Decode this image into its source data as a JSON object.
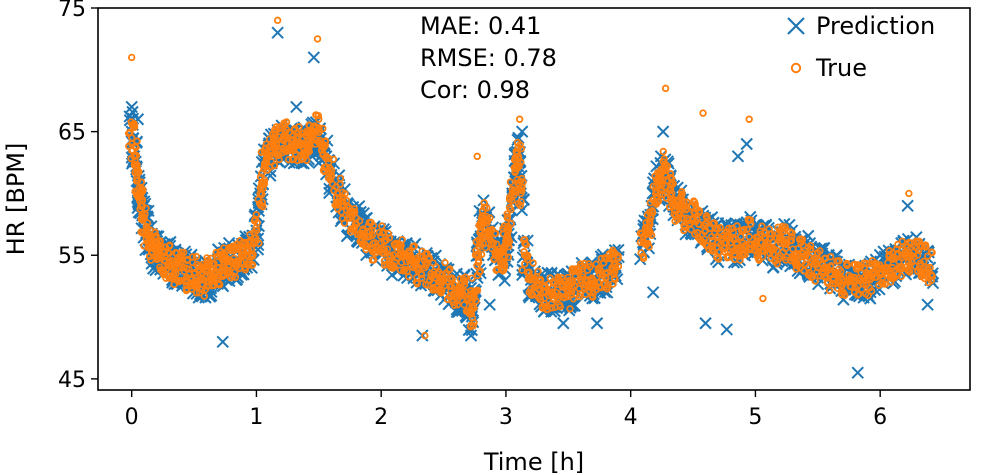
{
  "chart_data": {
    "type": "scatter",
    "title": "",
    "xlabel": "Time [h]",
    "ylabel": "HR [BPM]",
    "xlim": [
      -0.27,
      6.72
    ],
    "ylim": [
      44.1,
      75.0
    ],
    "xticks": [
      0,
      1,
      2,
      3,
      4,
      5,
      6
    ],
    "yticks": [
      45,
      55,
      65,
      75
    ],
    "grid": false,
    "legend_position": "top-right",
    "annotations": [
      "MAE: 0.41",
      "RMSE: 0.78",
      "Cor: 0.98"
    ],
    "series": [
      {
        "name": "Prediction",
        "marker": "x",
        "color": "#1f77b4",
        "x": [
          0.0,
          0.02,
          0.04,
          0.06,
          0.08,
          0.1,
          0.12,
          0.15,
          0.18,
          0.21,
          0.24,
          0.27,
          0.3,
          0.34,
          0.38,
          0.42,
          0.46,
          0.5,
          0.54,
          0.58,
          0.62,
          0.66,
          0.7,
          0.73,
          0.76,
          0.8,
          0.84,
          0.88,
          0.92,
          0.96,
          1.0,
          1.03,
          1.06,
          1.09,
          1.12,
          1.16,
          1.2,
          1.24,
          1.28,
          1.32,
          1.36,
          1.4,
          1.44,
          1.48,
          1.52,
          1.56,
          1.6,
          1.65,
          1.7,
          1.75,
          1.8,
          1.85,
          1.9,
          1.95,
          2.0,
          2.05,
          2.1,
          2.15,
          2.2,
          2.25,
          2.3,
          2.35,
          2.4,
          2.45,
          2.5,
          2.55,
          2.6,
          2.65,
          2.7,
          2.72,
          2.75,
          2.78,
          2.8,
          2.83,
          2.86,
          2.9,
          2.94,
          2.98,
          3.0,
          3.02,
          3.05,
          3.08,
          3.1,
          3.12,
          3.15,
          3.2,
          3.25,
          3.3,
          3.35,
          3.4,
          3.45,
          3.5,
          3.55,
          3.6,
          3.65,
          3.7,
          3.75,
          3.8,
          3.85,
          3.88,
          4.1,
          4.13,
          4.16,
          4.2,
          4.23,
          4.26,
          4.3,
          4.33,
          4.36,
          4.4,
          4.45,
          4.5,
          4.55,
          4.6,
          4.65,
          4.7,
          4.75,
          4.8,
          4.85,
          4.9,
          4.95,
          5.0,
          5.05,
          5.1,
          5.15,
          5.2,
          5.25,
          5.3,
          5.35,
          5.4,
          5.45,
          5.5,
          5.55,
          5.6,
          5.65,
          5.7,
          5.75,
          5.8,
          5.85,
          5.9,
          5.95,
          6.0,
          6.05,
          6.1,
          6.15,
          6.2,
          6.25,
          6.3,
          6.35,
          6.4,
          0.0,
          0.05,
          0.73,
          1.17,
          1.32,
          1.46,
          2.33,
          2.72,
          2.87,
          3.1,
          3.13,
          3.46,
          3.73,
          4.18,
          4.26,
          4.6,
          4.77,
          4.86,
          4.93,
          5.82,
          5.92,
          6.22,
          6.38
        ],
        "y": [
          65,
          63,
          61,
          60,
          59,
          58,
          57,
          56,
          55.5,
          55,
          55,
          54.5,
          54.5,
          54,
          54,
          54,
          53.5,
          53.5,
          53,
          53,
          53,
          53.5,
          54,
          54,
          54.5,
          54.5,
          54.5,
          55,
          55,
          55.5,
          57,
          60,
          62,
          63,
          63.5,
          64,
          64,
          64.5,
          64,
          64,
          63.5,
          64,
          64.5,
          65,
          64,
          63,
          61.5,
          60,
          59,
          58,
          57.5,
          57,
          56.5,
          56,
          56,
          55.5,
          55,
          55,
          54.5,
          54.5,
          54,
          54,
          53.5,
          53.5,
          53,
          52.5,
          52,
          52,
          51.5,
          50.5,
          52,
          55,
          57,
          58,
          57,
          56,
          55,
          54.5,
          56,
          57,
          60,
          62,
          63,
          60,
          55,
          53,
          52.5,
          52,
          52,
          52,
          52,
          52,
          52.5,
          53,
          53,
          53,
          53.5,
          53.5,
          54,
          54,
          56,
          57,
          58,
          60,
          61,
          62,
          61,
          60,
          59,
          59,
          58,
          58,
          57.5,
          57,
          56.5,
          56,
          56,
          56,
          56,
          56,
          56.5,
          56,
          56,
          56,
          55.5,
          56,
          56,
          55.5,
          55,
          55,
          54.5,
          54,
          54,
          53.5,
          53.5,
          53,
          53,
          53,
          53,
          53,
          53.5,
          53.5,
          54,
          54,
          54.5,
          55,
          55,
          55,
          54.5,
          54,
          67,
          66,
          48,
          73,
          67,
          71,
          48.5,
          48.5,
          51,
          64.5,
          65,
          49.5,
          49.5,
          52,
          65,
          49.5,
          49,
          63,
          64,
          45.5,
          51.5,
          59,
          51
        ]
      },
      {
        "name": "True",
        "marker": "o",
        "color": "#ff7f0e",
        "x": [
          0.0,
          0.02,
          0.04,
          0.06,
          0.08,
          0.1,
          0.12,
          0.15,
          0.18,
          0.21,
          0.24,
          0.27,
          0.3,
          0.34,
          0.38,
          0.42,
          0.46,
          0.5,
          0.54,
          0.58,
          0.62,
          0.66,
          0.7,
          0.73,
          0.76,
          0.8,
          0.84,
          0.88,
          0.92,
          0.96,
          1.0,
          1.03,
          1.06,
          1.09,
          1.12,
          1.16,
          1.2,
          1.24,
          1.28,
          1.32,
          1.36,
          1.4,
          1.44,
          1.48,
          1.52,
          1.56,
          1.6,
          1.65,
          1.7,
          1.75,
          1.8,
          1.85,
          1.9,
          1.95,
          2.0,
          2.05,
          2.1,
          2.15,
          2.2,
          2.25,
          2.3,
          2.35,
          2.4,
          2.45,
          2.5,
          2.55,
          2.6,
          2.65,
          2.7,
          2.72,
          2.75,
          2.78,
          2.8,
          2.83,
          2.86,
          2.9,
          2.94,
          2.98,
          3.0,
          3.02,
          3.05,
          3.08,
          3.1,
          3.12,
          3.15,
          3.2,
          3.25,
          3.3,
          3.35,
          3.4,
          3.45,
          3.5,
          3.55,
          3.6,
          3.65,
          3.7,
          3.75,
          3.8,
          3.85,
          3.88,
          4.1,
          4.13,
          4.16,
          4.2,
          4.23,
          4.26,
          4.3,
          4.33,
          4.36,
          4.4,
          4.45,
          4.5,
          4.55,
          4.6,
          4.65,
          4.7,
          4.75,
          4.8,
          4.85,
          4.9,
          4.95,
          5.0,
          5.05,
          5.1,
          5.15,
          5.2,
          5.25,
          5.3,
          5.35,
          5.4,
          5.45,
          5.5,
          5.55,
          5.6,
          5.65,
          5.7,
          5.75,
          5.8,
          5.85,
          5.9,
          5.95,
          6.0,
          6.05,
          6.1,
          6.15,
          6.2,
          6.25,
          6.3,
          6.35,
          6.4,
          0.0,
          1.17,
          1.49,
          2.35,
          2.77,
          3.11,
          4.28,
          4.58,
          4.95,
          5.06,
          6.23
        ],
        "y": [
          64.5,
          63,
          61,
          60,
          59,
          58,
          57,
          56,
          55.5,
          55,
          55,
          54.5,
          54.5,
          54,
          54,
          54,
          53.5,
          53.5,
          53,
          53,
          53.5,
          53.5,
          54,
          54,
          54.5,
          54.5,
          54.5,
          55,
          55,
          55.5,
          57,
          60,
          62,
          63,
          63.5,
          64,
          64,
          64.5,
          64,
          64,
          64,
          64,
          64.5,
          65,
          64,
          63,
          61.5,
          60,
          59,
          58,
          57.5,
          57,
          56.5,
          56,
          56,
          55.5,
          55,
          55,
          54.5,
          54.5,
          54,
          54,
          53.5,
          53.5,
          53,
          52.5,
          52,
          52,
          51.5,
          50.5,
          52,
          55,
          57,
          58,
          57,
          56,
          55,
          54.5,
          56,
          57,
          60,
          62,
          63,
          60,
          55,
          53,
          52.5,
          52,
          52,
          52,
          52,
          52,
          52.5,
          53,
          53,
          53,
          53.5,
          53.5,
          54,
          54,
          56,
          57,
          58,
          60,
          61,
          62,
          61,
          60,
          59,
          59,
          58,
          58,
          57.5,
          57,
          56.5,
          56,
          56,
          56,
          56,
          56,
          56.5,
          56,
          56,
          56,
          55.5,
          56,
          56,
          55.5,
          55,
          55,
          54.5,
          54,
          54,
          53.5,
          53.5,
          53,
          53,
          53,
          53,
          53,
          53.5,
          53.5,
          54,
          54,
          54.5,
          55,
          55,
          55,
          54.5,
          54,
          71,
          74,
          72.5,
          48.5,
          63,
          66,
          68.5,
          66.5,
          66,
          51.5,
          60
        ]
      }
    ]
  }
}
